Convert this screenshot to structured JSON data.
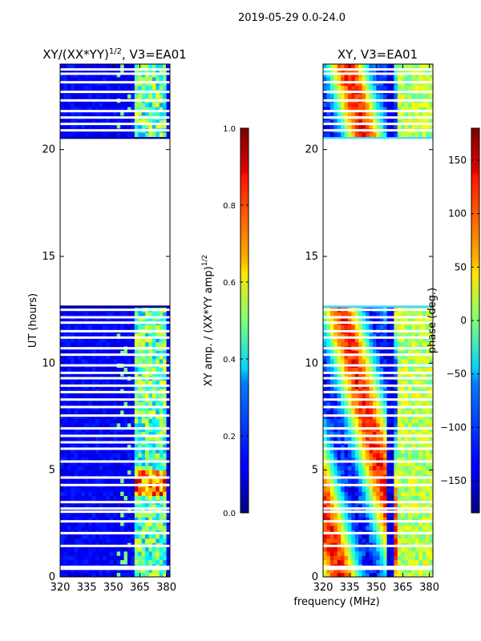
{
  "suptitle": "2019-05-29 0.0-24.0",
  "common_xlabel": "frequency (MHz)",
  "colors": {
    "axis": "#000000",
    "empty": "#ffffff",
    "low": "#00007f",
    "high": "#7f0000"
  },
  "chart_data": [
    {
      "type": "heatmap",
      "title_main": "XY/(XX*YY)",
      "title_sup": "1/2",
      "title_tail": ", V3=EA01",
      "xlabel": "",
      "ylabel": "UT (hours)",
      "xlim": [
        320,
        382
      ],
      "ylim": [
        0,
        24
      ],
      "xticks": [
        "320",
        "335",
        "350",
        "365",
        "380"
      ],
      "xtick_values": [
        320,
        335,
        350,
        365,
        380
      ],
      "yticks": [
        "0",
        "5",
        "10",
        "15",
        "20"
      ],
      "ytick_values": [
        0,
        5,
        10,
        15,
        20
      ],
      "data_gap_hours": [
        12.7,
        20.5
      ],
      "colorbar": {
        "label_main": "XY amp. / (XX*YY amp)",
        "label_sup": "1/2",
        "range": [
          0.0,
          1.0
        ],
        "ticks": [
          "0.0",
          "0.2",
          "0.4",
          "0.6",
          "0.8",
          "1.0"
        ],
        "tick_values": [
          0.0,
          0.2,
          0.4,
          0.6,
          0.8,
          1.0
        ],
        "colormap": "jet"
      }
    },
    {
      "type": "heatmap",
      "title": "XY, V3=EA01",
      "xlabel": "frequency (MHz)",
      "ylabel": "",
      "xlim": [
        320,
        382
      ],
      "ylim": [
        0,
        24
      ],
      "xticks": [
        "320",
        "335",
        "350",
        "365",
        "380"
      ],
      "xtick_values": [
        320,
        335,
        350,
        365,
        380
      ],
      "yticks": [
        "0",
        "5",
        "10",
        "15",
        "20"
      ],
      "ytick_values": [
        0,
        5,
        10,
        15,
        20
      ],
      "data_gap_hours": [
        12.7,
        20.5
      ],
      "colorbar": {
        "label": "phase (deg.)",
        "range": [
          -180,
          180
        ],
        "ticks": [
          "−150",
          "−100",
          "−50",
          "0",
          "50",
          "100",
          "150"
        ],
        "tick_values": [
          -150,
          -100,
          -50,
          0,
          50,
          100,
          150
        ],
        "colormap": "jet"
      }
    }
  ]
}
